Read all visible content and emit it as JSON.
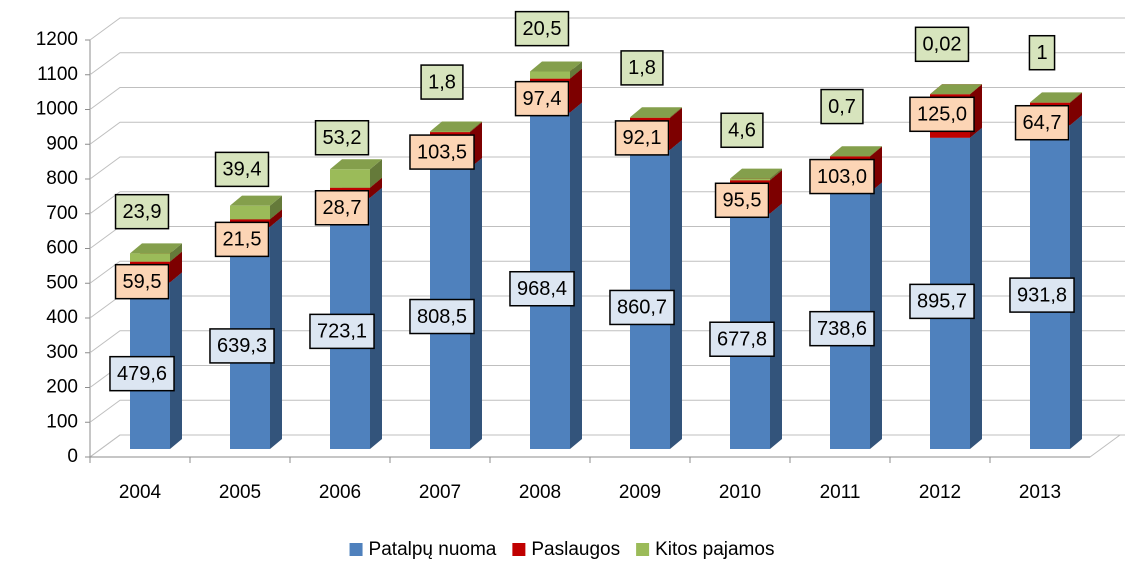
{
  "chart_data": {
    "type": "bar3d_stacked",
    "categories": [
      "2004",
      "2005",
      "2006",
      "2007",
      "2008",
      "2009",
      "2010",
      "2011",
      "2012",
      "2013"
    ],
    "series": [
      {
        "name": "Patalpų nuoma",
        "color": "#4f81bd",
        "label_color": "#dce6f2",
        "values": [
          479.6,
          639.3,
          723.1,
          808.5,
          968.4,
          860.7,
          677.8,
          738.6,
          895.7,
          931.8
        ],
        "value_labels": [
          "479,6",
          "639,3",
          "723,1",
          "808,5",
          "968,4",
          "860,7",
          "677,8",
          "738,6",
          "895,7",
          "931,8"
        ]
      },
      {
        "name": "Paslaugos",
        "color": "#c00000",
        "label_color": "#fcd5b5",
        "values": [
          59.5,
          21.5,
          28.7,
          103.5,
          97.4,
          92.1,
          95.5,
          103.0,
          125.0,
          64.7
        ],
        "value_labels": [
          "59,5",
          "21,5",
          "28,7",
          "103,5",
          "97,4",
          "92,1",
          "95,5",
          "103,0",
          "125,0",
          "64,7"
        ]
      },
      {
        "name": "Kitos pajamos",
        "color": "#9bbb59",
        "label_color": "#d7e4bd",
        "values": [
          23.9,
          39.4,
          53.2,
          1.8,
          20.5,
          1.8,
          4.6,
          0.7,
          0.02,
          1
        ],
        "value_labels": [
          "23,9",
          "39,4",
          "53,2",
          "1,8",
          "20,5",
          "1,8",
          "4,6",
          "0,7",
          "0,02",
          "1"
        ]
      }
    ],
    "ylim": [
      0,
      1200
    ],
    "yticks": [
      0,
      100,
      200,
      300,
      400,
      500,
      600,
      700,
      800,
      900,
      1000,
      1100,
      1200
    ],
    "grid": true,
    "legend": "bottom"
  }
}
